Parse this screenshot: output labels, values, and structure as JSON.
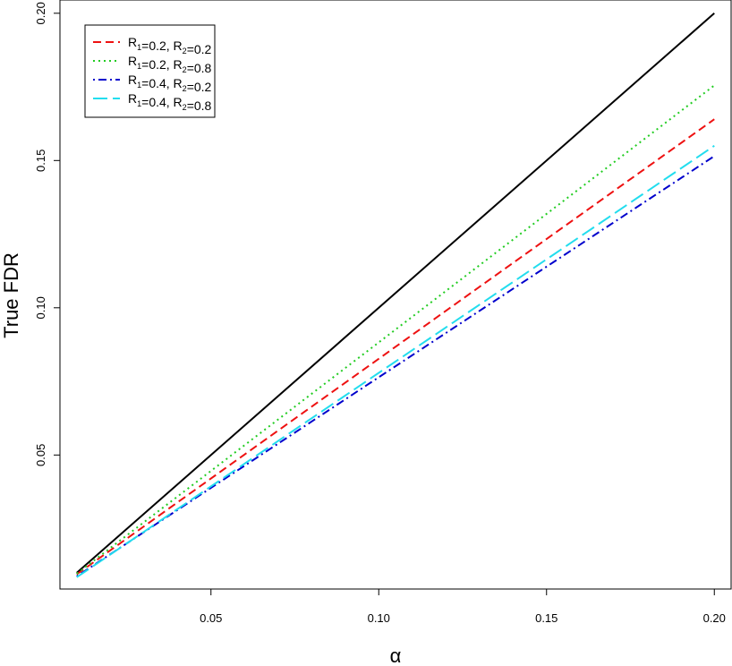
{
  "chart_data": {
    "type": "line",
    "title": "",
    "xlabel": "α",
    "ylabel": "True FDR",
    "xlim": [
      0.005,
      0.205
    ],
    "ylim": [
      0.0045,
      0.2045
    ],
    "xticks": [
      0.05,
      0.1,
      0.15,
      0.2
    ],
    "xtick_labels": [
      "0.05",
      "0.10",
      "0.15",
      "0.20"
    ],
    "yticks": [
      0.05,
      0.1,
      0.15,
      0.2
    ],
    "ytick_labels": [
      "0.05",
      "0.10",
      "0.15",
      "0.20"
    ],
    "grid": false,
    "legend_position": "top-left",
    "reference_line": {
      "x": [
        0.01,
        0.2
      ],
      "y": [
        0.01,
        0.2
      ],
      "color": "#000000",
      "dash": "solid"
    },
    "series": [
      {
        "name": {
          "r1": "0.2",
          "r2": "0.2"
        },
        "x": [
          0.01,
          0.2
        ],
        "y": [
          0.0095,
          0.164
        ],
        "color": "#ee1111",
        "dash": "dashed"
      },
      {
        "name": {
          "r1": "0.2",
          "r2": "0.8"
        },
        "x": [
          0.01,
          0.2
        ],
        "y": [
          0.0097,
          0.1755
        ],
        "color": "#22cc22",
        "dash": "dotted"
      },
      {
        "name": {
          "r1": "0.4",
          "r2": "0.2"
        },
        "x": [
          0.01,
          0.2
        ],
        "y": [
          0.0088,
          0.1515
        ],
        "color": "#0000cc",
        "dash": "dotdash"
      },
      {
        "name": {
          "r1": "0.4",
          "r2": "0.8"
        },
        "x": [
          0.01,
          0.2
        ],
        "y": [
          0.0085,
          0.155
        ],
        "color": "#22ddee",
        "dash": "longdash"
      }
    ]
  }
}
